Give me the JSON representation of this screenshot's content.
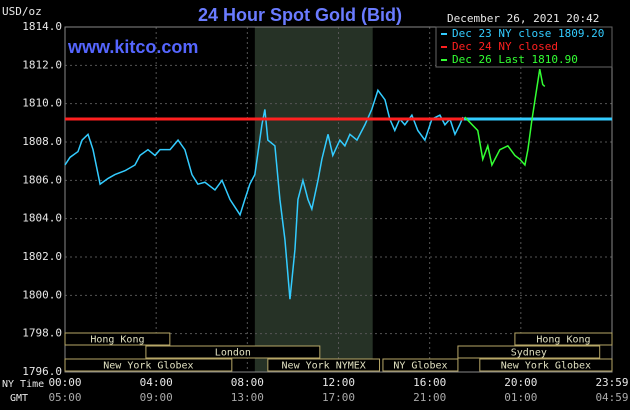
{
  "chart_data": {
    "type": "line",
    "title": "24 Hour Spot Gold (Bid)",
    "unit_label": "USD/oz",
    "timestamp": "December 26, 2021 20:42",
    "watermark": "www.kitco.com",
    "x_row_labels": [
      "NY Time",
      "GMT"
    ],
    "xlim": [
      0,
      24
    ],
    "xticks": [
      {
        "value": 0,
        "label": "00:00"
      },
      {
        "value": 4,
        "label": "04:00"
      },
      {
        "value": 8,
        "label": "08:00"
      },
      {
        "value": 12,
        "label": "12:00"
      },
      {
        "value": 16,
        "label": "16:00"
      },
      {
        "value": 20,
        "label": "20:00"
      },
      {
        "value": 24,
        "label": "23:59"
      }
    ],
    "gmt_labels": [
      "05:00",
      "09:00",
      "13:00",
      "17:00",
      "21:00",
      "01:00",
      "04:59"
    ],
    "ylim": [
      1796,
      1814
    ],
    "yticks": [
      {
        "value": 1796,
        "label": "1796.0"
      },
      {
        "value": 1798,
        "label": "1798.0"
      },
      {
        "value": 1800,
        "label": "1800.0"
      },
      {
        "value": 1802,
        "label": "1802.0"
      },
      {
        "value": 1804,
        "label": "1804.0"
      },
      {
        "value": 1806,
        "label": "1806.0"
      },
      {
        "value": 1808,
        "label": "1808.0"
      },
      {
        "value": 1810,
        "label": "1810.0"
      },
      {
        "value": 1812,
        "label": "1812.0"
      },
      {
        "value": 1814,
        "label": "1814.0"
      }
    ],
    "grid": true,
    "highlight_range": [
      8.33,
      13.5
    ],
    "series": [
      {
        "name": "Dec 23 NY close 1809.20",
        "color": "#33ccff",
        "x": [
          0,
          0.22,
          0.57,
          0.75,
          1.01,
          1.23,
          1.54,
          1.89,
          2.19,
          2.63,
          3.07,
          3.29,
          3.64,
          3.95,
          4.17,
          4.61,
          4.96,
          5.26,
          5.57,
          5.83,
          6.14,
          6.58,
          6.89,
          7.24,
          7.68,
          7.89,
          8.11,
          8.33,
          8.64,
          8.77,
          8.9,
          9.21,
          9.43,
          9.65,
          9.87,
          10.09,
          10.22,
          10.44,
          10.66,
          10.83,
          11.1,
          11.27,
          11.54,
          11.75,
          12.06,
          12.28,
          12.5,
          12.81,
          13.16,
          13.46,
          13.73,
          14.04,
          14.25,
          14.47,
          14.69,
          14.91,
          15.22,
          15.48,
          15.79,
          16.1,
          16.45,
          16.67,
          16.89,
          17.11,
          17.32,
          17.46
        ],
        "values": [
          1806.8,
          1807.2,
          1807.5,
          1808.1,
          1808.4,
          1807.6,
          1805.8,
          1806.1,
          1806.3,
          1806.5,
          1806.8,
          1807.3,
          1807.6,
          1807.3,
          1807.6,
          1807.6,
          1808.1,
          1807.6,
          1806.3,
          1805.8,
          1805.9,
          1805.5,
          1806.0,
          1805.0,
          1804.2,
          1805.0,
          1805.8,
          1806.3,
          1808.9,
          1809.7,
          1808.1,
          1807.8,
          1805.0,
          1802.9,
          1799.8,
          1802.4,
          1805.0,
          1806.0,
          1805.0,
          1804.5,
          1806.0,
          1807.1,
          1808.4,
          1807.3,
          1808.1,
          1807.8,
          1808.4,
          1808.1,
          1808.9,
          1809.7,
          1810.7,
          1810.2,
          1809.2,
          1808.6,
          1809.2,
          1808.9,
          1809.4,
          1808.6,
          1808.1,
          1809.2,
          1809.4,
          1808.9,
          1809.2,
          1808.4,
          1808.9,
          1809.3
        ]
      },
      {
        "name": "Dec 24 NY closed",
        "color": "#ff2020",
        "x": [
          0,
          17.5
        ],
        "values": [
          1809.2,
          1809.2
        ]
      },
      {
        "name": "Dec 26 Last 1810.90",
        "color": "#33ff33",
        "x": [
          17.54,
          18.11,
          18.33,
          18.55,
          18.73,
          19.08,
          19.43,
          19.74,
          19.96,
          20.18,
          20.31,
          20.48,
          20.66,
          20.83,
          20.96,
          21.05
        ],
        "values": [
          1809.3,
          1808.6,
          1807.1,
          1807.8,
          1806.8,
          1807.6,
          1807.8,
          1807.3,
          1807.1,
          1806.8,
          1807.6,
          1809.1,
          1810.5,
          1811.8,
          1811.0,
          1810.9
        ]
      }
    ],
    "reference_line": {
      "value": 1809.2,
      "start": 17.5,
      "color": "#33ccff"
    },
    "session_rows": [
      [
        {
          "label": "Hong Kong",
          "start": 0,
          "end": 4.6
        },
        {
          "label": "Hong Kong",
          "start": 19.74,
          "end": 24
        }
      ],
      [
        {
          "label": "London",
          "start": 3.55,
          "end": 11.18
        },
        {
          "label": "Sydney",
          "start": 17.24,
          "end": 23.46
        }
      ],
      [
        {
          "label": "New York Globex",
          "start": 0,
          "end": 7.32
        },
        {
          "label": "New York NYMEX",
          "start": 8.9,
          "end": 13.8
        },
        {
          "label": "NY Globex",
          "start": 13.95,
          "end": 17.24
        },
        {
          "label": "New York Globex",
          "start": 18.2,
          "end": 24
        }
      ]
    ]
  }
}
